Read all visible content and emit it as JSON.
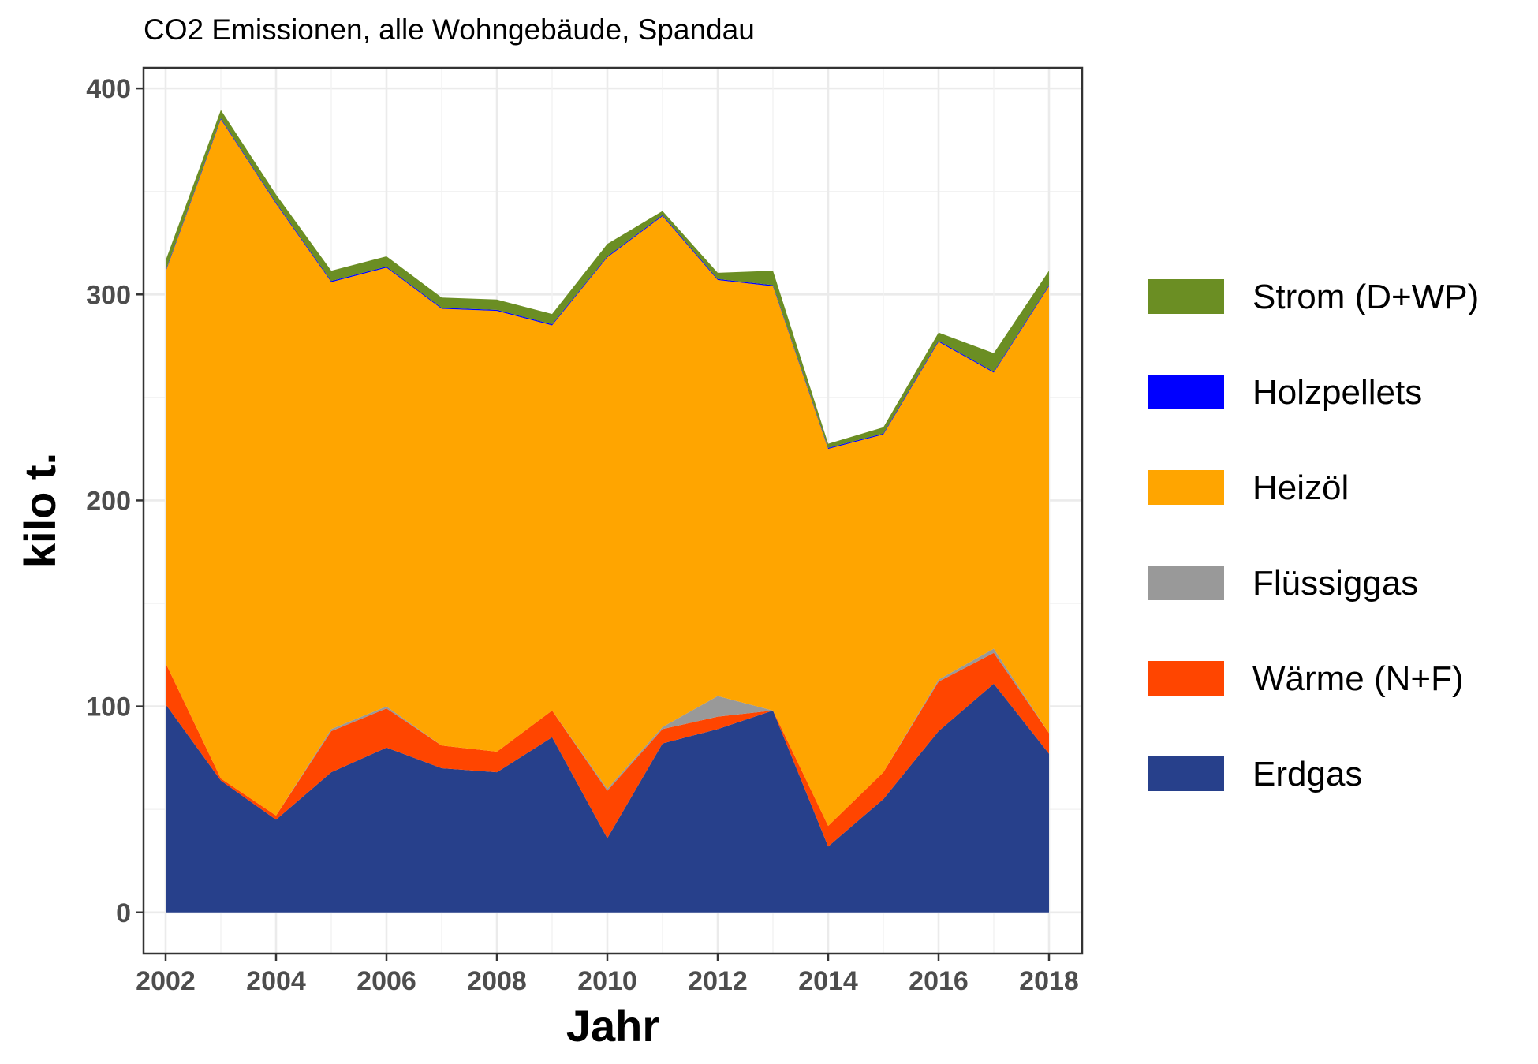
{
  "chart_data": {
    "type": "area",
    "stacked": true,
    "title": "CO2 Emissionen, alle Wohngebäude, Spandau",
    "xlabel": "Jahr",
    "ylabel": "kilo t.",
    "xlim": [
      2001.6,
      2018.6
    ],
    "ylim": [
      -20,
      410
    ],
    "x_ticks": [
      2002,
      2004,
      2006,
      2008,
      2010,
      2012,
      2014,
      2016,
      2018
    ],
    "x_tick_labels": [
      "2002",
      "2004",
      "2006",
      "2008",
      "2010",
      "2012",
      "2014",
      "2016",
      "2018"
    ],
    "y_ticks": [
      0,
      100,
      200,
      300,
      400
    ],
    "y_tick_labels": [
      "0",
      "100",
      "200",
      "300",
      "400"
    ],
    "grid": true,
    "legend_position": "right",
    "x": [
      2002,
      2003,
      2004,
      2005,
      2006,
      2007,
      2008,
      2009,
      2010,
      2011,
      2012,
      2013,
      2014,
      2015,
      2016,
      2017,
      2018
    ],
    "series": [
      {
        "name": "Erdgas",
        "color": "#27408b",
        "values": [
          101,
          64,
          45,
          68,
          80,
          70,
          68,
          85,
          36,
          82,
          89,
          98,
          32,
          55,
          88,
          111,
          77
        ]
      },
      {
        "name": "Wärme (N+F)",
        "color": "#ff4500",
        "values": [
          20,
          1,
          2,
          20,
          19,
          11,
          10,
          13,
          23,
          7,
          6,
          0,
          10,
          13,
          24,
          15,
          10
        ]
      },
      {
        "name": "Flüssiggas",
        "color": "#999999",
        "values": [
          0,
          0,
          0,
          1,
          1,
          0,
          0,
          0,
          1,
          1,
          10,
          0,
          0,
          0,
          1,
          2,
          0
        ]
      },
      {
        "name": "Heizöl",
        "color": "#ffa500",
        "values": [
          190,
          320,
          297,
          217,
          213,
          212,
          214,
          187,
          258,
          248,
          202,
          206,
          183,
          164,
          164,
          134,
          217
        ]
      },
      {
        "name": "Holzpellets",
        "color": "#0000ff",
        "values": [
          0.5,
          0.5,
          0.5,
          0.5,
          0.5,
          0.5,
          0.5,
          0.5,
          0.5,
          0.5,
          0.5,
          0.5,
          0.5,
          0.5,
          0.5,
          0.5,
          0.5
        ]
      },
      {
        "name": "Strom (D+WP)",
        "color": "#6b8e23",
        "values": [
          5,
          4,
          4,
          5,
          5,
          5,
          5,
          5,
          6,
          2,
          3,
          7,
          2,
          3,
          4,
          9,
          7
        ]
      }
    ],
    "legend_order": [
      "Strom (D+WP)",
      "Holzpellets",
      "Heizöl",
      "Flüssiggas",
      "Wärme (N+F)",
      "Erdgas"
    ]
  }
}
